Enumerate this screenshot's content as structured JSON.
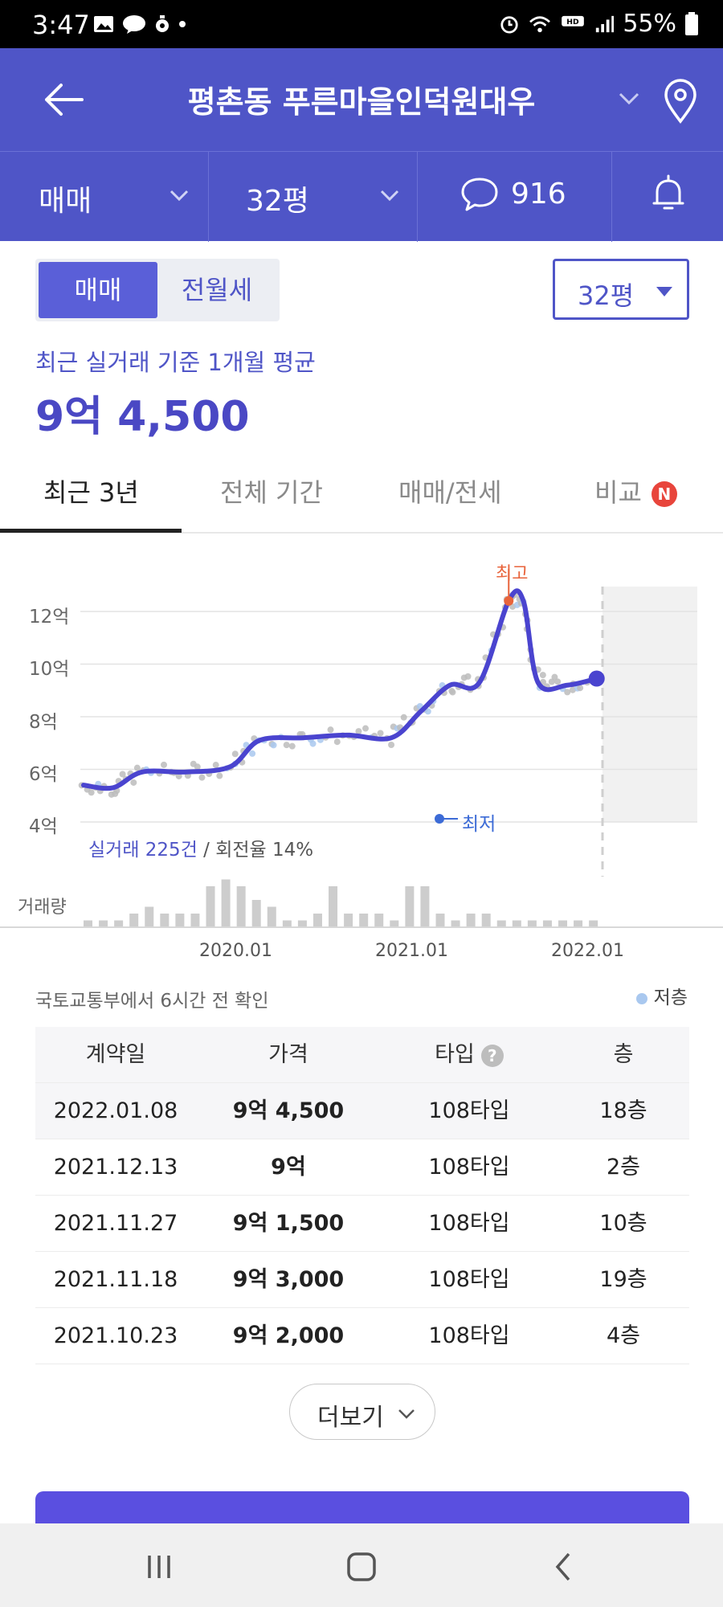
{
  "status_bar": {
    "time": "3:47",
    "battery": "55%"
  },
  "header": {
    "title": "평촌동 푸른마을인덕원대우"
  },
  "filters": {
    "deal_type": "매매",
    "size": "32평",
    "comments": "916"
  },
  "segment": {
    "active": "매매",
    "inactive": "전월세"
  },
  "size_select": {
    "label": "32평"
  },
  "summary": {
    "caption": "최근 실거래 기준 1개월 평균",
    "price": "9억 4,500"
  },
  "tabs": [
    {
      "label": "최근 3년"
    },
    {
      "label": "전체 기간"
    },
    {
      "label": "매매/전세"
    },
    {
      "label": "비교",
      "badge": "N"
    }
  ],
  "chart_data": {
    "type": "line",
    "y_unit": "억",
    "ylim": [
      4,
      12.5
    ],
    "y_ticks": [
      "12억",
      "10억",
      "8억",
      "6억",
      "4억"
    ],
    "x_ticks": [
      "2020.01",
      "2021.01",
      "2022.01"
    ],
    "trend": [
      {
        "x": "2019.02",
        "y": 5.4
      },
      {
        "x": "2019.04",
        "y": 5.3
      },
      {
        "x": "2019.06",
        "y": 5.9
      },
      {
        "x": "2019.09",
        "y": 5.9
      },
      {
        "x": "2019.12",
        "y": 6.1
      },
      {
        "x": "2020.02",
        "y": 7.1
      },
      {
        "x": "2020.05",
        "y": 7.2
      },
      {
        "x": "2020.08",
        "y": 7.3
      },
      {
        "x": "2020.11",
        "y": 7.2
      },
      {
        "x": "2021.01",
        "y": 8.2
      },
      {
        "x": "2021.03",
        "y": 9.2
      },
      {
        "x": "2021.05",
        "y": 9.3
      },
      {
        "x": "2021.07",
        "y": 12.4
      },
      {
        "x": "2021.08",
        "y": 12.4
      },
      {
        "x": "2021.09",
        "y": 9.3
      },
      {
        "x": "2021.11",
        "y": 9.2
      },
      {
        "x": "2022.01",
        "y": 9.45
      }
    ],
    "max_label": "최고",
    "min_label": "최저",
    "volume_label": "거래량",
    "volume": [
      1,
      1,
      1,
      2,
      3,
      2,
      2,
      2,
      6,
      7,
      6,
      4,
      3,
      1,
      1,
      2,
      6,
      2,
      2,
      2,
      1,
      6,
      6,
      2,
      1,
      2,
      2,
      1,
      1,
      1,
      1,
      1,
      1,
      1,
      0
    ],
    "stats_trades": "실거래 225건",
    "stats_turnover": "회전율 14%"
  },
  "source_note": "국토교통부에서 6시간 전 확인",
  "legend": {
    "low_floor": "저층"
  },
  "table": {
    "headers": [
      "계약일",
      "가격",
      "타입",
      "층"
    ],
    "rows": [
      [
        "2022.01.08",
        "9억 4,500",
        "108타입",
        "18층"
      ],
      [
        "2021.12.13",
        "9억",
        "108타입",
        "2층"
      ],
      [
        "2021.11.27",
        "9억 1,500",
        "108타입",
        "10층"
      ],
      [
        "2021.11.18",
        "9억 3,000",
        "108타입",
        "19층"
      ],
      [
        "2021.10.23",
        "9억 2,000",
        "108타입",
        "4층"
      ]
    ]
  },
  "more_button": {
    "label": "더보기"
  }
}
